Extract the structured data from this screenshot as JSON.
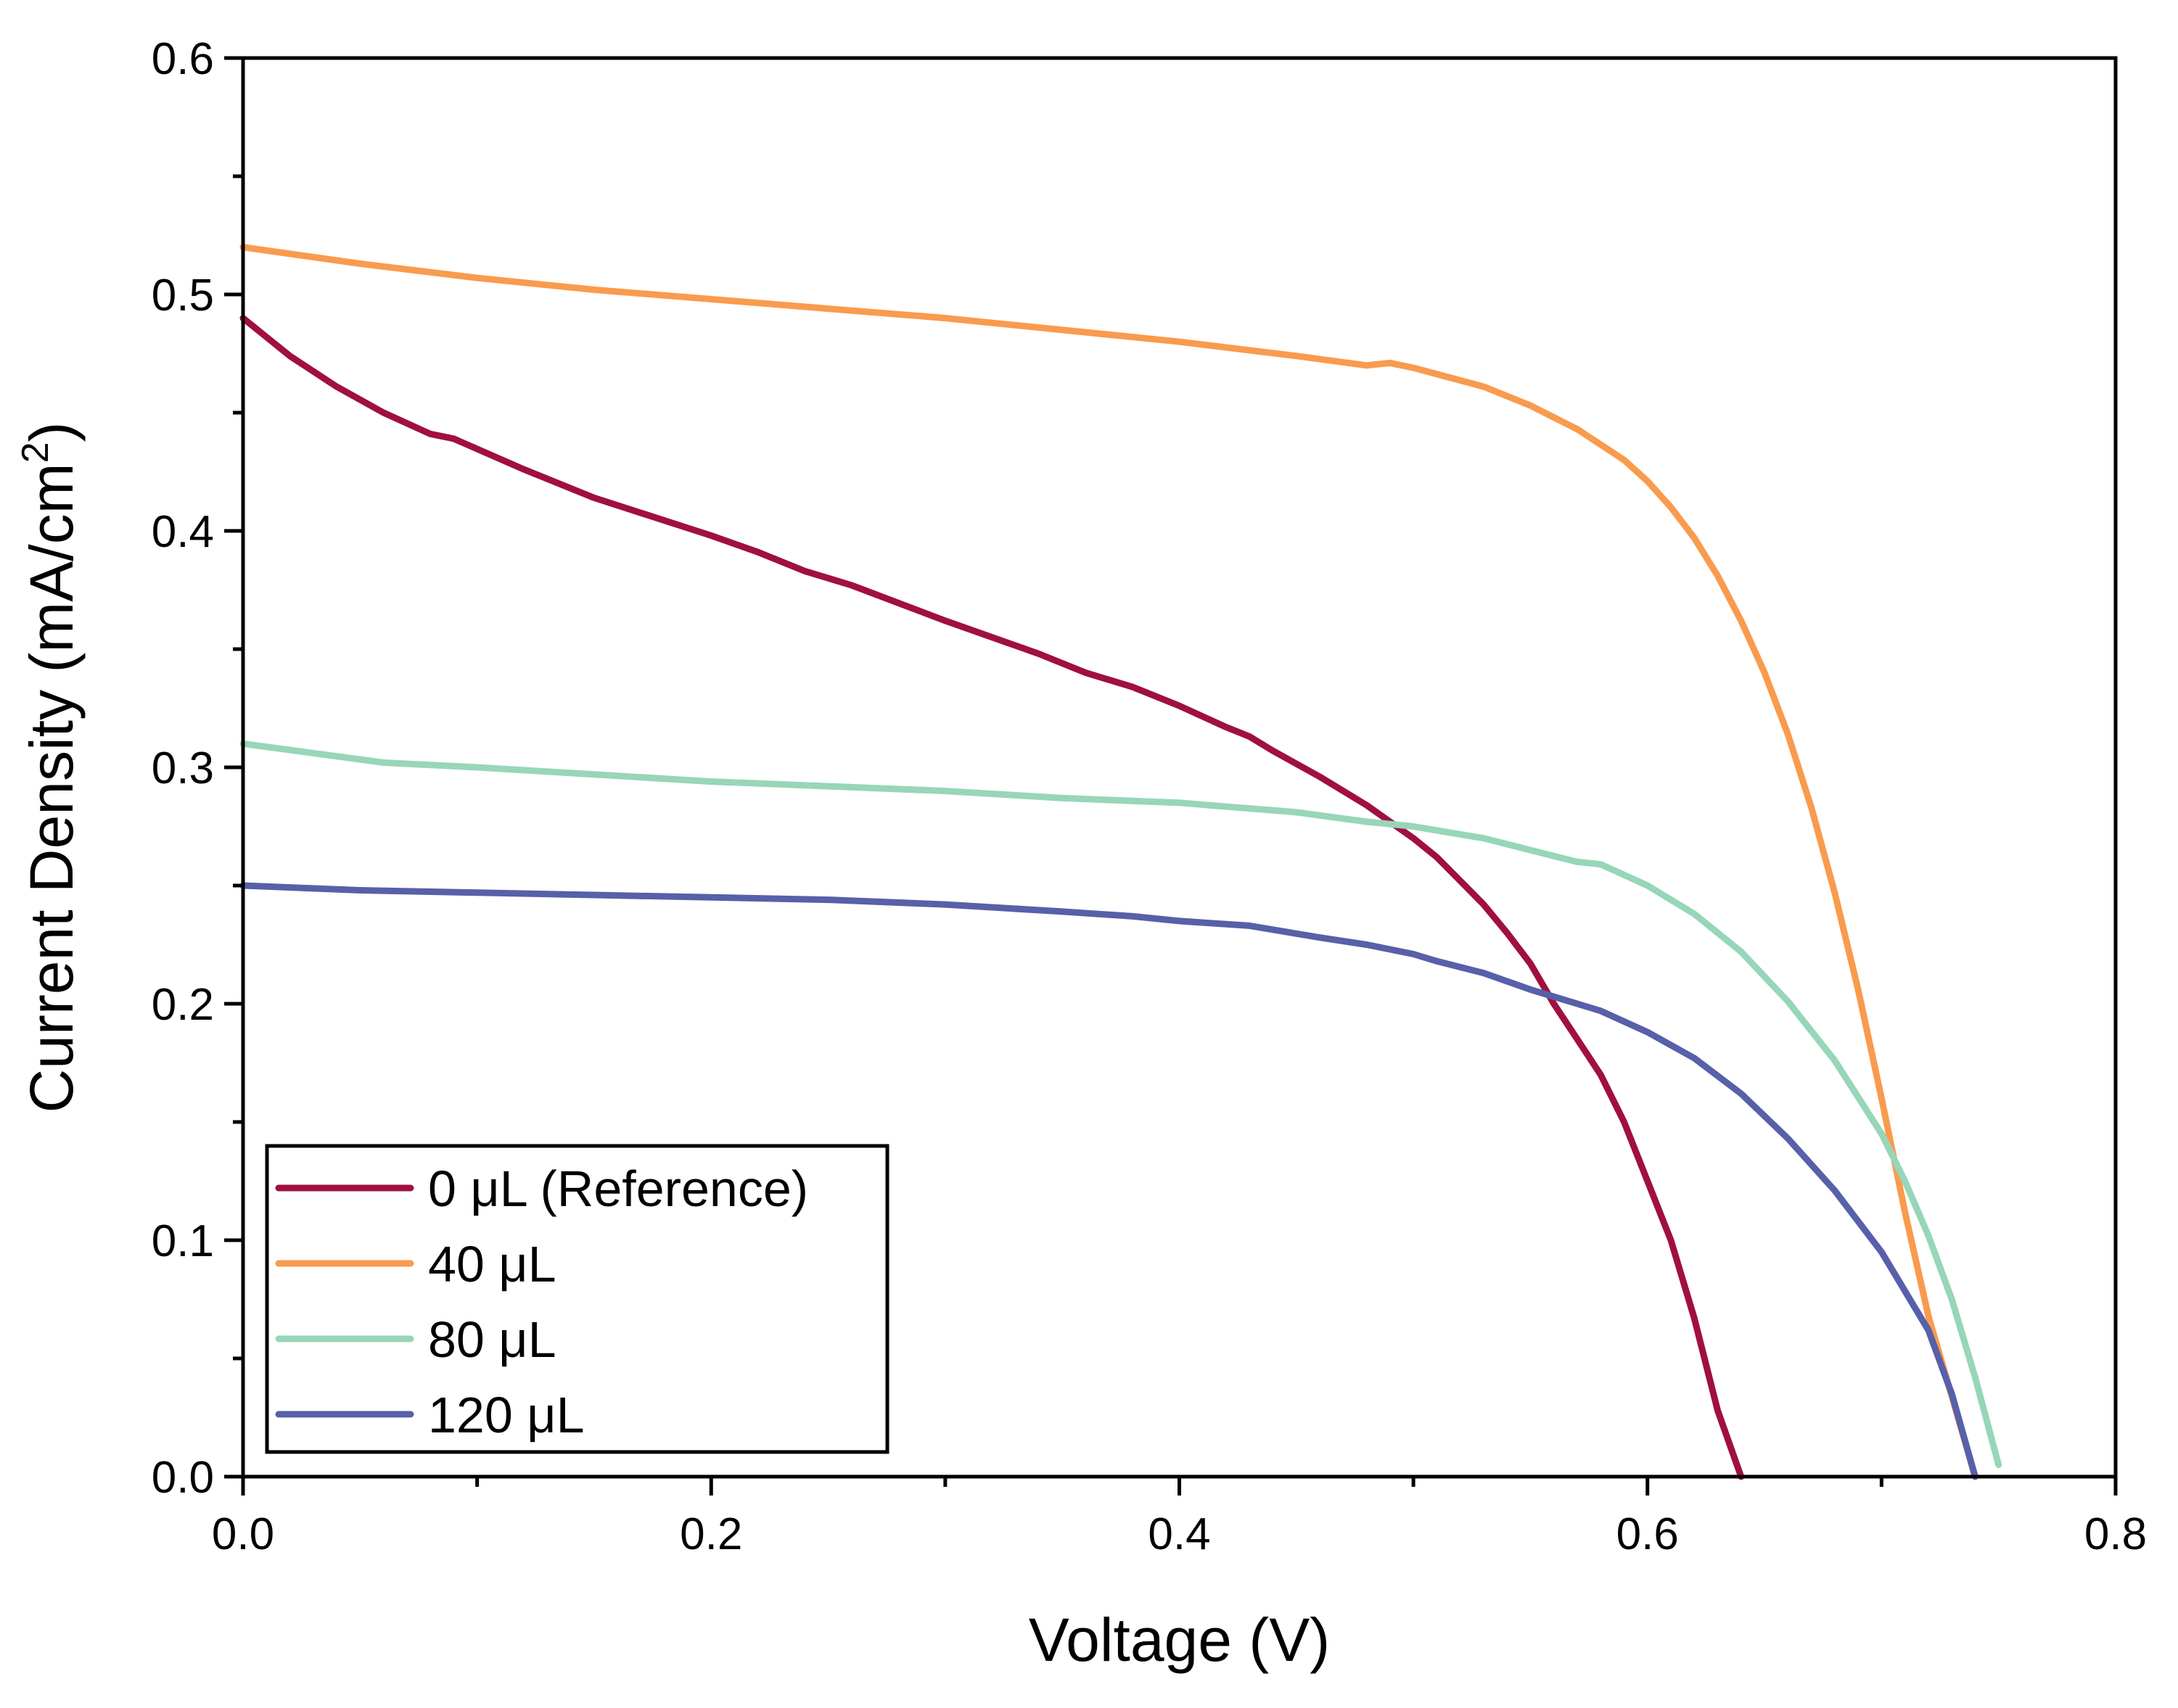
{
  "chart_data": {
    "type": "line",
    "xlabel": "Voltage (V)",
    "ylabel_main": "Current Density (mA/cm",
    "ylabel_sup": "2",
    "ylabel_close": ")",
    "xlim": [
      0,
      0.8
    ],
    "ylim": [
      0,
      0.6
    ],
    "x_ticks": [
      0.0,
      0.2,
      0.4,
      0.6,
      0.8
    ],
    "x_tick_labels": [
      "0.0",
      "0.2",
      "0.4",
      "0.6",
      "0.8"
    ],
    "y_ticks": [
      0.0,
      0.1,
      0.2,
      0.3,
      0.4,
      0.5,
      0.6
    ],
    "y_tick_labels": [
      "0.0",
      "0.1",
      "0.2",
      "0.3",
      "0.4",
      "0.5",
      "0.6"
    ],
    "grid": false,
    "legend_position": "bottom-left",
    "series": [
      {
        "name": "0 μL (Reference)",
        "color": "#a0103e",
        "points": [
          [
            0.0,
            0.49
          ],
          [
            0.02,
            0.474
          ],
          [
            0.04,
            0.461
          ],
          [
            0.06,
            0.45
          ],
          [
            0.08,
            0.441
          ],
          [
            0.09,
            0.439
          ],
          [
            0.12,
            0.426
          ],
          [
            0.15,
            0.414
          ],
          [
            0.2,
            0.398
          ],
          [
            0.22,
            0.391
          ],
          [
            0.24,
            0.383
          ],
          [
            0.26,
            0.377
          ],
          [
            0.3,
            0.362
          ],
          [
            0.34,
            0.348
          ],
          [
            0.36,
            0.34
          ],
          [
            0.38,
            0.334
          ],
          [
            0.4,
            0.326
          ],
          [
            0.42,
            0.317
          ],
          [
            0.43,
            0.313
          ],
          [
            0.44,
            0.307
          ],
          [
            0.46,
            0.296
          ],
          [
            0.48,
            0.284
          ],
          [
            0.5,
            0.27
          ],
          [
            0.51,
            0.262
          ],
          [
            0.52,
            0.252
          ],
          [
            0.53,
            0.242
          ],
          [
            0.54,
            0.23
          ],
          [
            0.55,
            0.217
          ],
          [
            0.56,
            0.2
          ],
          [
            0.57,
            0.185
          ],
          [
            0.58,
            0.17
          ],
          [
            0.59,
            0.15
          ],
          [
            0.6,
            0.125
          ],
          [
            0.61,
            0.1
          ],
          [
            0.62,
            0.067
          ],
          [
            0.63,
            0.028
          ],
          [
            0.64,
            0.0
          ]
        ]
      },
      {
        "name": "40 μL",
        "color": "#f99b4e",
        "points": [
          [
            0.0,
            0.52
          ],
          [
            0.05,
            0.513
          ],
          [
            0.1,
            0.507
          ],
          [
            0.15,
            0.502
          ],
          [
            0.2,
            0.498
          ],
          [
            0.25,
            0.494
          ],
          [
            0.3,
            0.49
          ],
          [
            0.35,
            0.485
          ],
          [
            0.4,
            0.48
          ],
          [
            0.45,
            0.474
          ],
          [
            0.48,
            0.47
          ],
          [
            0.49,
            0.471
          ],
          [
            0.5,
            0.469
          ],
          [
            0.53,
            0.461
          ],
          [
            0.55,
            0.453
          ],
          [
            0.57,
            0.443
          ],
          [
            0.59,
            0.43
          ],
          [
            0.6,
            0.421
          ],
          [
            0.61,
            0.41
          ],
          [
            0.62,
            0.397
          ],
          [
            0.63,
            0.381
          ],
          [
            0.64,
            0.362
          ],
          [
            0.65,
            0.34
          ],
          [
            0.66,
            0.314
          ],
          [
            0.67,
            0.283
          ],
          [
            0.68,
            0.247
          ],
          [
            0.69,
            0.206
          ],
          [
            0.7,
            0.16
          ],
          [
            0.71,
            0.112
          ],
          [
            0.72,
            0.068
          ],
          [
            0.73,
            0.034
          ],
          [
            0.74,
            0.0
          ]
        ]
      },
      {
        "name": "80 μL",
        "color": "#97d6b8",
        "points": [
          [
            0.0,
            0.31
          ],
          [
            0.03,
            0.306
          ],
          [
            0.06,
            0.302
          ],
          [
            0.1,
            0.3
          ],
          [
            0.15,
            0.297
          ],
          [
            0.2,
            0.294
          ],
          [
            0.25,
            0.292
          ],
          [
            0.3,
            0.29
          ],
          [
            0.35,
            0.287
          ],
          [
            0.4,
            0.285
          ],
          [
            0.45,
            0.281
          ],
          [
            0.48,
            0.277
          ],
          [
            0.5,
            0.275
          ],
          [
            0.53,
            0.27
          ],
          [
            0.55,
            0.265
          ],
          [
            0.57,
            0.26
          ],
          [
            0.58,
            0.259
          ],
          [
            0.6,
            0.25
          ],
          [
            0.62,
            0.238
          ],
          [
            0.64,
            0.222
          ],
          [
            0.66,
            0.201
          ],
          [
            0.68,
            0.176
          ],
          [
            0.7,
            0.145
          ],
          [
            0.71,
            0.125
          ],
          [
            0.72,
            0.102
          ],
          [
            0.73,
            0.075
          ],
          [
            0.74,
            0.042
          ],
          [
            0.75,
            0.005
          ]
        ]
      },
      {
        "name": "120 μL",
        "color": "#5760a8",
        "points": [
          [
            0.0,
            0.25
          ],
          [
            0.05,
            0.248
          ],
          [
            0.1,
            0.247
          ],
          [
            0.15,
            0.246
          ],
          [
            0.2,
            0.245
          ],
          [
            0.25,
            0.244
          ],
          [
            0.3,
            0.242
          ],
          [
            0.35,
            0.239
          ],
          [
            0.38,
            0.237
          ],
          [
            0.4,
            0.235
          ],
          [
            0.43,
            0.233
          ],
          [
            0.46,
            0.228
          ],
          [
            0.48,
            0.225
          ],
          [
            0.5,
            0.221
          ],
          [
            0.51,
            0.218
          ],
          [
            0.53,
            0.213
          ],
          [
            0.55,
            0.206
          ],
          [
            0.57,
            0.2
          ],
          [
            0.58,
            0.197
          ],
          [
            0.6,
            0.188
          ],
          [
            0.62,
            0.177
          ],
          [
            0.64,
            0.162
          ],
          [
            0.66,
            0.143
          ],
          [
            0.68,
            0.121
          ],
          [
            0.7,
            0.095
          ],
          [
            0.72,
            0.062
          ],
          [
            0.73,
            0.035
          ],
          [
            0.74,
            0.0
          ]
        ]
      }
    ]
  }
}
